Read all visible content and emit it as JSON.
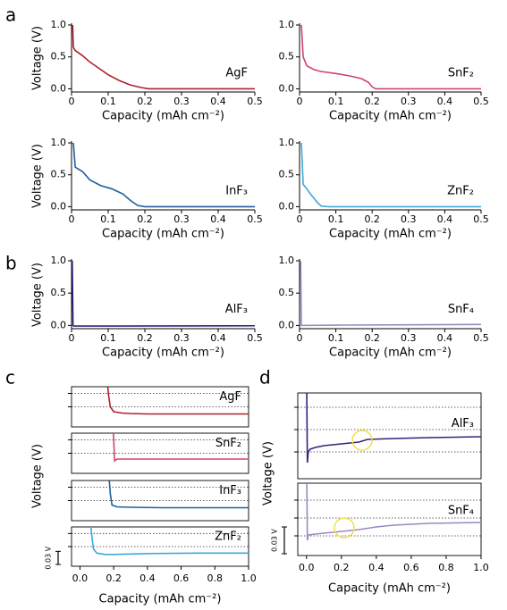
{
  "panel_labels": [
    "a",
    "b",
    "c",
    "d"
  ],
  "chart_data": [
    {
      "type": "line",
      "title": "AgF",
      "xlabel": "Capacity (mAh cm⁻²)",
      "ylabel": "Voltage (V)",
      "x": [
        0,
        0.003,
        0.005,
        0.01,
        0.03,
        0.05,
        0.08,
        0.1,
        0.13,
        0.16,
        0.19,
        0.21,
        0.3,
        0.5
      ],
      "series": [
        {
          "color": "#b0202a",
          "values": [
            1,
            1,
            0.65,
            0.6,
            0.52,
            0.42,
            0.3,
            0.22,
            0.13,
            0.06,
            0.02,
            0,
            0,
            0
          ]
        }
      ],
      "xlim": [
        0,
        0.5
      ],
      "ylim": [
        -0.05,
        1
      ],
      "xticks": [
        0,
        0.1,
        0.2,
        0.3,
        0.4,
        0.5
      ],
      "yticks": [
        {
          "value": 0,
          "label": "0.0"
        },
        0.5,
        {
          "value": 1,
          "label": "1.0"
        }
      ],
      "grid": false,
      "ytick_labels": true
    },
    {
      "type": "line",
      "title": "SnF₂",
      "xlabel": "Capacity (mAh cm⁻²)",
      "x": [
        0,
        0.005,
        0.01,
        0.02,
        0.04,
        0.06,
        0.1,
        0.14,
        0.17,
        0.19,
        0.2,
        0.21,
        0.5
      ],
      "series": [
        {
          "color": "#d0446a",
          "values": [
            1,
            1,
            0.5,
            0.36,
            0.3,
            0.27,
            0.24,
            0.2,
            0.16,
            0.1,
            0.03,
            0,
            0
          ]
        }
      ],
      "xlim": [
        0,
        0.5
      ],
      "ylim": [
        -0.05,
        1
      ],
      "xticks": [
        0,
        0.1,
        0.2,
        0.3,
        0.4,
        0.5
      ],
      "yticks": [
        {
          "value": 0,
          "label": "0.0"
        },
        0.5,
        {
          "value": 1,
          "label": "1.0"
        }
      ],
      "grid": false,
      "ytick_labels": true
    },
    {
      "type": "line",
      "title": "InF₃",
      "xlabel": "Capacity (mAh cm⁻²)",
      "ylabel": "Voltage (V)",
      "x": [
        0,
        0.005,
        0.01,
        0.03,
        0.05,
        0.08,
        0.11,
        0.14,
        0.16,
        0.18,
        0.2,
        0.3,
        0.5
      ],
      "series": [
        {
          "color": "#1f5fa0",
          "values": [
            1,
            1,
            0.62,
            0.55,
            0.42,
            0.33,
            0.28,
            0.2,
            0.1,
            0.02,
            0,
            0,
            0
          ]
        }
      ],
      "xlim": [
        0,
        0.5
      ],
      "ylim": [
        -0.05,
        1
      ],
      "xticks": [
        0,
        0.1,
        0.2,
        0.3,
        0.4,
        0.5
      ],
      "yticks": [
        {
          "value": 0,
          "label": "0.0"
        },
        0.5,
        {
          "value": 1,
          "label": "1.0"
        }
      ],
      "grid": false,
      "ytick_labels": true
    },
    {
      "type": "line",
      "title": "ZnF₂",
      "xlabel": "Capacity (mAh cm⁻²)",
      "x": [
        0,
        0.005,
        0.01,
        0.02,
        0.03,
        0.05,
        0.06,
        0.08,
        0.5
      ],
      "series": [
        {
          "color": "#3ea8dc",
          "values": [
            1,
            1,
            0.35,
            0.28,
            0.2,
            0.06,
            0.01,
            0,
            0
          ]
        }
      ],
      "xlim": [
        0,
        0.5
      ],
      "ylim": [
        -0.05,
        1
      ],
      "xticks": [
        0,
        0.1,
        0.2,
        0.3,
        0.4,
        0.5
      ],
      "yticks": [
        {
          "value": 0,
          "label": "0.0"
        },
        0.5,
        {
          "value": 1,
          "label": "1.0"
        }
      ],
      "grid": false,
      "ytick_labels": true
    },
    {
      "type": "line",
      "title": "AlF₃",
      "xlabel": "Capacity (mAh cm⁻²)",
      "ylabel": "Voltage (V)",
      "x": [
        0,
        0.002,
        0.004,
        0.006,
        0.5
      ],
      "series": [
        {
          "color": "#3b1f7a",
          "values": [
            1,
            1,
            0,
            -0.01,
            -0.005
          ]
        }
      ],
      "xlim": [
        0,
        0.5
      ],
      "ylim": [
        -0.05,
        1
      ],
      "xticks": [
        0,
        0.1,
        0.2,
        0.3,
        0.4,
        0.5
      ],
      "yticks": [
        {
          "value": 0,
          "label": "0.0"
        },
        0.5,
        {
          "value": 1,
          "label": "1.0"
        }
      ],
      "grid": false,
      "ytick_labels": true
    },
    {
      "type": "line",
      "title": "SnF₄",
      "xlabel": "Capacity (mAh cm⁻²)",
      "x": [
        0,
        0.003,
        0.005,
        0.1,
        0.3,
        0.5
      ],
      "series": [
        {
          "color": "#9a88c0",
          "values": [
            1,
            1,
            0,
            0.005,
            0.01,
            0.015
          ]
        }
      ],
      "xlim": [
        0,
        0.5
      ],
      "ylim": [
        -0.05,
        1
      ],
      "xticks": [
        0,
        0.1,
        0.2,
        0.3,
        0.4,
        0.5
      ],
      "yticks": [
        {
          "value": 0,
          "label": "0.0"
        },
        0.5,
        {
          "value": 1,
          "label": "1.0"
        }
      ],
      "grid": false,
      "ytick_labels": true
    },
    {
      "type": "line",
      "title": "AgF",
      "ylabel": "Voltage (V)",
      "x": [
        0.16,
        0.17,
        0.18,
        0.2,
        0.25,
        0.3,
        0.4,
        0.6,
        0.8,
        1.0
      ],
      "series": [
        {
          "color": "#b0202a",
          "values": [
            0.08,
            0.04,
            0.015,
            0.004,
            0.001,
            0,
            -0.001,
            -0.001,
            -0.001,
            -0.001
          ]
        }
      ],
      "xlim": [
        -0.05,
        1
      ],
      "ylim": [
        -0.03,
        0.06
      ],
      "yticks": [
        0.045,
        0.015
      ],
      "grid": true,
      "ytick_labels": false
    },
    {
      "type": "line",
      "title": "SnF₂",
      "x": [
        0.195,
        0.2,
        0.205,
        0.22,
        0.3,
        0.5,
        0.75,
        1.0
      ],
      "series": [
        {
          "color": "#d0446a",
          "values": [
            0.08,
            0.05,
            -0.002,
            0.002,
            0.002,
            0.002,
            0.002,
            0.002
          ]
        }
      ],
      "xlim": [
        -0.05,
        1
      ],
      "ylim": [
        -0.03,
        0.06
      ],
      "yticks": [
        0.045,
        0.015
      ],
      "grid": true,
      "ytick_labels": false
    },
    {
      "type": "line",
      "title": "InF₃",
      "x": [
        0.17,
        0.18,
        0.19,
        0.22,
        0.3,
        0.5,
        0.8,
        1.0
      ],
      "series": [
        {
          "color": "#1f5fa0",
          "values": [
            0.08,
            0.03,
            0.005,
            0.001,
            0,
            -0.001,
            -0.001,
            -0.001
          ]
        }
      ],
      "xlim": [
        -0.05,
        1
      ],
      "ylim": [
        -0.03,
        0.06
      ],
      "yticks": [
        0.045,
        0.015
      ],
      "grid": true,
      "ytick_labels": false
    },
    {
      "type": "line",
      "title": "ZnF₂",
      "xlabel": "Capacity (mAh cm⁻²)",
      "x": [
        0.06,
        0.07,
        0.08,
        0.1,
        0.15,
        0.2,
        0.4,
        0.7,
        1.0
      ],
      "series": [
        {
          "color": "#3ea8dc",
          "values": [
            0.08,
            0.04,
            0.01,
            0,
            -0.003,
            -0.003,
            -0.001,
            0,
            0
          ]
        }
      ],
      "xlim": [
        -0.05,
        1
      ],
      "ylim": [
        -0.03,
        0.06
      ],
      "yticks": [
        0.045,
        0.015
      ],
      "grid": true,
      "ytick_labels": false,
      "xticks": [
        {
          "value": 0,
          "label": "0.0"
        },
        0.2,
        0.4,
        0.6,
        0.8,
        {
          "value": 1,
          "label": "1.0"
        }
      ],
      "scale_bar": {
        "value": 0.03,
        "label": "0.03 V"
      }
    },
    {
      "type": "line",
      "title": "AlF₃",
      "ylabel": "Voltage (V)",
      "x": [
        0,
        0.005,
        0.01,
        0.02,
        0.05,
        0.1,
        0.2,
        0.3,
        0.35,
        0.5,
        0.7,
        1.0
      ],
      "series": [
        {
          "color": "#3b1f7a",
          "values": [
            0.1,
            -0.012,
            0,
            0.003,
            0.005,
            0.007,
            0.009,
            0.011,
            0.014,
            0.015,
            0.016,
            0.017
          ]
        }
      ],
      "xlim": [
        -0.05,
        1
      ],
      "ylim": [
        -0.03,
        0.066
      ],
      "yticks": [
        0,
        0.025,
        0.05
      ],
      "grid": true,
      "ytick_labels": false
    },
    {
      "type": "line",
      "title": "SnF₄",
      "xlabel": "Capacity (mAh cm⁻²)",
      "x": [
        0,
        0.005,
        0.01,
        0.05,
        0.1,
        0.2,
        0.3,
        0.4,
        0.5,
        0.7,
        1.0
      ],
      "series": [
        {
          "color": "#9a88c0",
          "values": [
            0.1,
            -0.005,
            0.001,
            0.002,
            0.003,
            0.005,
            0.007,
            0.01,
            0.012,
            0.014,
            0.015
          ]
        }
      ],
      "xlim": [
        -0.05,
        1
      ],
      "ylim": [
        -0.022,
        0.059
      ],
      "yticks": [
        0,
        0.02,
        0.04
      ],
      "grid": true,
      "ytick_labels": false,
      "xticks": [
        {
          "value": 0,
          "label": "0.0"
        },
        0.2,
        0.4,
        0.6,
        0.8,
        {
          "value": 1,
          "label": "1.0"
        }
      ],
      "scale_bar": {
        "value": 0.03,
        "label": "0.03 V"
      }
    }
  ]
}
